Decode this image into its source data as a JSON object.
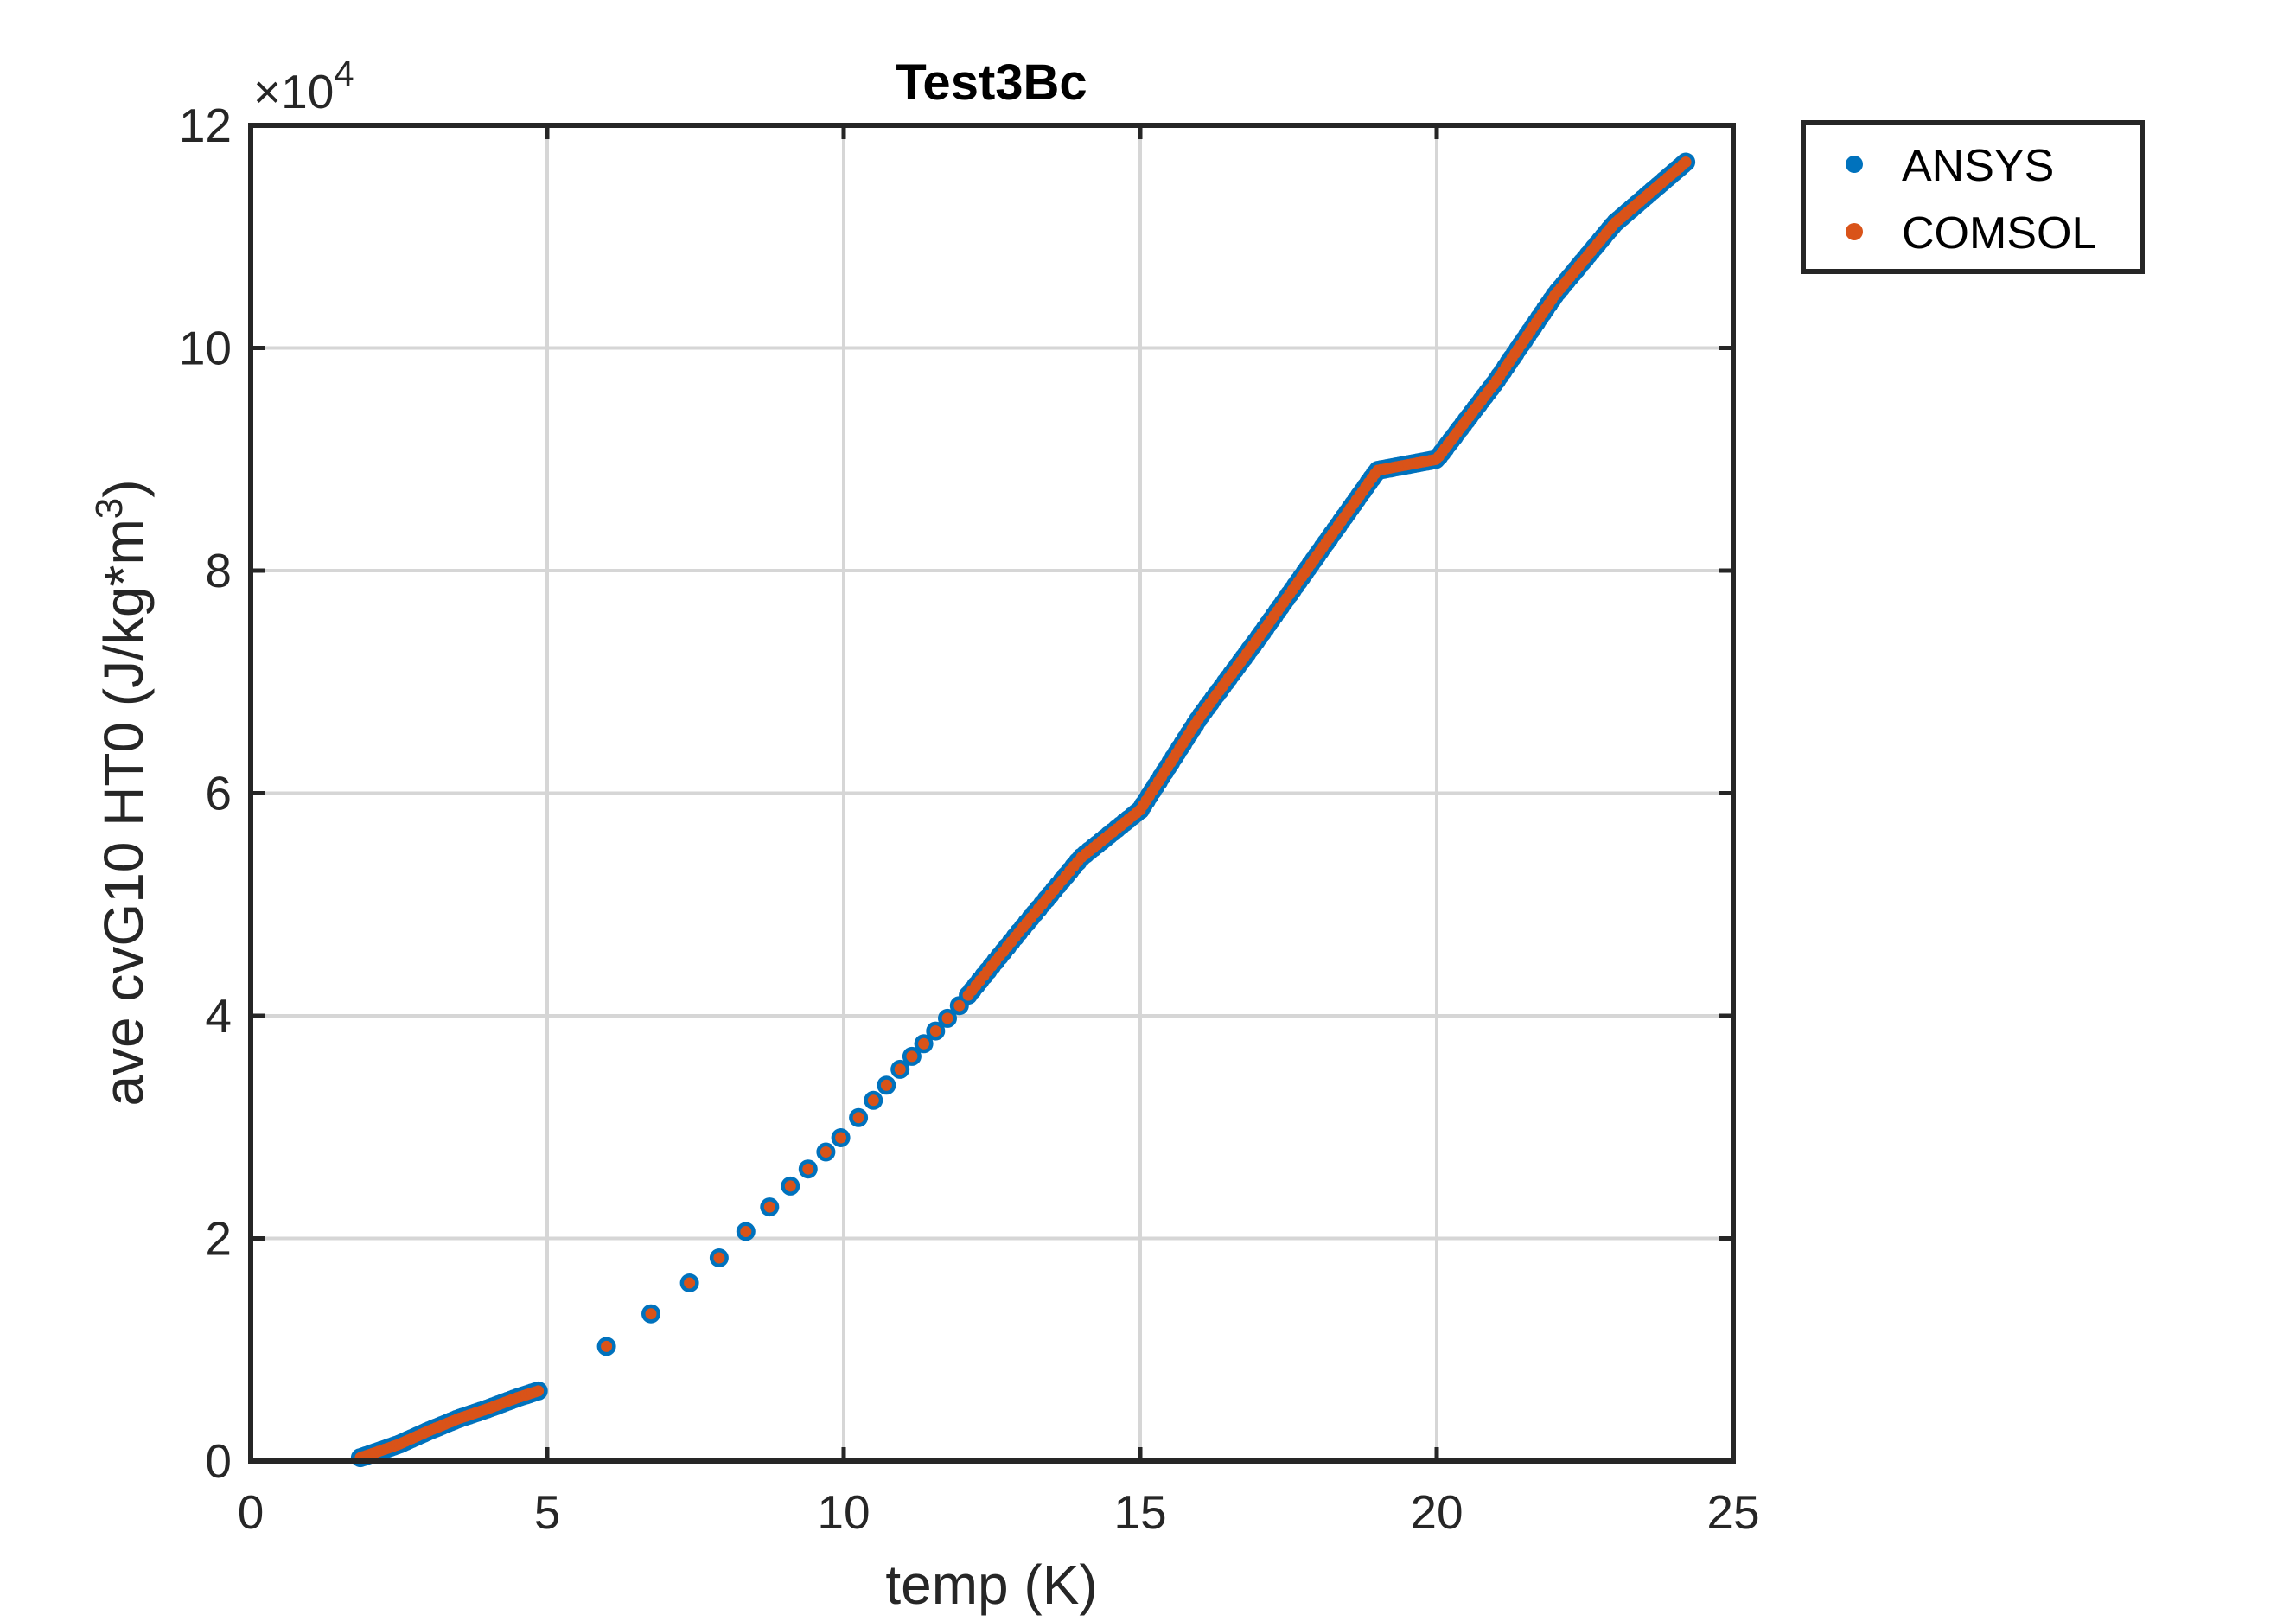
{
  "chart_data": {
    "type": "scatter",
    "title": "Test3Bc",
    "xlabel": "temp (K)",
    "ylabel": "ave cvG10 HT0 (J/kg*m",
    "ylabel_superscript": "3",
    "ylabel_suffix": ")",
    "exponent_multiplier": "×10",
    "exponent_power": "4",
    "xlim": [
      0,
      25
    ],
    "ylim": [
      0,
      12
    ],
    "x_ticks": [
      "0",
      "5",
      "10",
      "15",
      "20",
      "25"
    ],
    "y_ticks": [
      "0",
      "2",
      "4",
      "6",
      "8",
      "10",
      "12"
    ],
    "grid": true,
    "legend_position": "outside top-right",
    "series": [
      {
        "name": "ANSYS",
        "color": "#0072BD",
        "segments": [
          {
            "x_start": 1.85,
            "x_end": 4.85,
            "n": 60
          },
          {
            "x": [
              6.0,
              6.75,
              7.4,
              7.9,
              8.35,
              8.75,
              9.1,
              9.4,
              9.7,
              9.95,
              10.25,
              10.5,
              10.72,
              10.95,
              11.15,
              11.35,
              11.55,
              11.75,
              11.95
            ],
            "n": 0
          },
          {
            "x_start": 12.1,
            "x_end": 15.0,
            "n": 45
          },
          {
            "x_start": 15.0,
            "x_end": 24.2,
            "n": 180
          }
        ],
        "curve": [
          [
            1.85,
            0.03
          ],
          [
            2.5,
            0.15
          ],
          [
            3.0,
            0.27
          ],
          [
            3.5,
            0.38
          ],
          [
            4.0,
            0.47
          ],
          [
            4.5,
            0.57
          ],
          [
            4.85,
            0.63
          ],
          [
            6.0,
            1.03
          ],
          [
            7.0,
            1.42
          ],
          [
            8.0,
            1.87
          ],
          [
            9.0,
            2.42
          ],
          [
            10.0,
            2.93
          ],
          [
            11.0,
            3.55
          ],
          [
            12.0,
            4.12
          ],
          [
            13.0,
            4.78
          ],
          [
            14.0,
            5.42
          ],
          [
            15.0,
            5.85
          ],
          [
            16.0,
            6.68
          ],
          [
            17.0,
            7.4
          ],
          [
            18.0,
            8.15
          ],
          [
            19.0,
            8.9
          ],
          [
            20.0,
            9.0
          ],
          [
            21.0,
            9.7
          ],
          [
            22.0,
            10.48
          ],
          [
            23.0,
            11.12
          ],
          [
            24.2,
            11.67
          ]
        ]
      },
      {
        "name": "COMSOL",
        "color": "#D95319"
      }
    ]
  }
}
